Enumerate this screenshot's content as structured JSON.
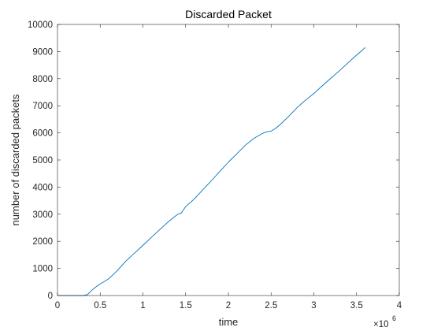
{
  "chart_data": {
    "type": "line",
    "title": "Discarded Packet",
    "xlabel": "time",
    "ylabel": "number of discarded packets",
    "x_exponent_label": "×10",
    "x_exponent_power": "6",
    "xlim": [
      0,
      4000000
    ],
    "ylim": [
      0,
      10000
    ],
    "x_ticks": [
      0,
      500000,
      1000000,
      1500000,
      2000000,
      2500000,
      3000000,
      3500000,
      4000000
    ],
    "x_tick_labels": [
      "0",
      "0.5",
      "1",
      "1.5",
      "2",
      "2.5",
      "3",
      "3.5",
      "4"
    ],
    "y_ticks": [
      0,
      1000,
      2000,
      3000,
      4000,
      5000,
      6000,
      7000,
      8000,
      9000,
      10000
    ],
    "y_tick_labels": [
      "0",
      "1000",
      "2000",
      "3000",
      "4000",
      "5000",
      "6000",
      "7000",
      "8000",
      "9000",
      "10000"
    ],
    "grid": false,
    "box": true,
    "series": [
      {
        "color": "#0072BD",
        "x": [
          0,
          100000,
          200000,
          300000,
          350000,
          400000,
          450000,
          500000,
          550000,
          600000,
          700000,
          800000,
          900000,
          1000000,
          1100000,
          1200000,
          1300000,
          1400000,
          1450000,
          1500000,
          1600000,
          1700000,
          1800000,
          1900000,
          2000000,
          2100000,
          2200000,
          2300000,
          2400000,
          2450000,
          2500000,
          2550000,
          2600000,
          2700000,
          2800000,
          2900000,
          3000000,
          3100000,
          3200000,
          3300000,
          3400000,
          3500000,
          3550000,
          3600000
        ],
        "values": [
          0,
          0,
          0,
          0,
          30,
          190,
          320,
          430,
          520,
          620,
          920,
          1270,
          1560,
          1850,
          2150,
          2440,
          2730,
          2980,
          3050,
          3280,
          3560,
          3900,
          4230,
          4580,
          4920,
          5230,
          5550,
          5800,
          5980,
          6040,
          6060,
          6160,
          6290,
          6590,
          6920,
          7200,
          7450,
          7740,
          8020,
          8290,
          8580,
          8870,
          9000,
          9150
        ]
      }
    ]
  }
}
